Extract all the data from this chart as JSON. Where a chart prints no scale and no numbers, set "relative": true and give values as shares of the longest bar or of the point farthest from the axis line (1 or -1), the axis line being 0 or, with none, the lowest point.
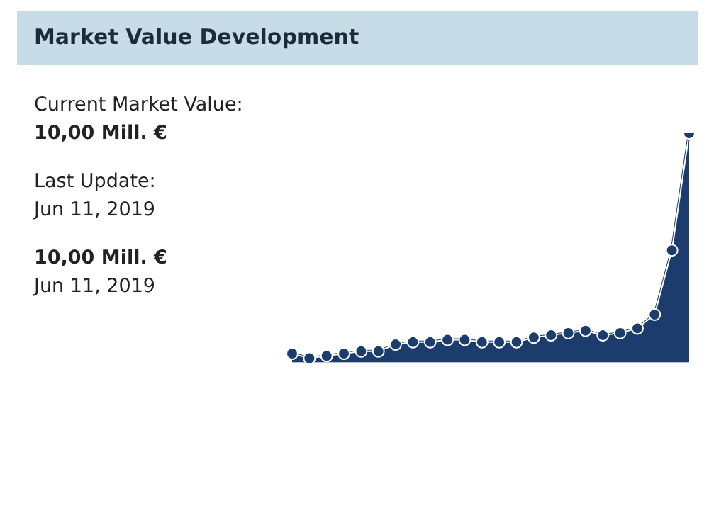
{
  "chart_data": {
    "type": "area",
    "title": "Market Value Development",
    "annotations": [
      "Current Market Value:",
      "10,00 Mill. €",
      "Last Update:",
      "Jun 11, 2019",
      "10,00 Mill. €",
      "Jun 11, 2019"
    ],
    "categories": [
      null,
      null,
      null,
      null,
      null,
      null,
      null,
      null,
      null,
      null,
      null,
      null,
      null,
      null,
      null,
      null,
      null,
      null,
      null,
      null,
      null,
      null,
      null,
      null
    ],
    "values": [
      0.04,
      0.02,
      0.03,
      0.04,
      0.05,
      0.05,
      0.08,
      0.09,
      0.09,
      0.1,
      0.1,
      0.09,
      0.09,
      0.09,
      0.11,
      0.12,
      0.13,
      0.14,
      0.12,
      0.13,
      0.15,
      0.21,
      0.49,
      1
    ],
    "color": "#1d3c6e",
    "relative": true,
    "marker": "circle"
  }
}
